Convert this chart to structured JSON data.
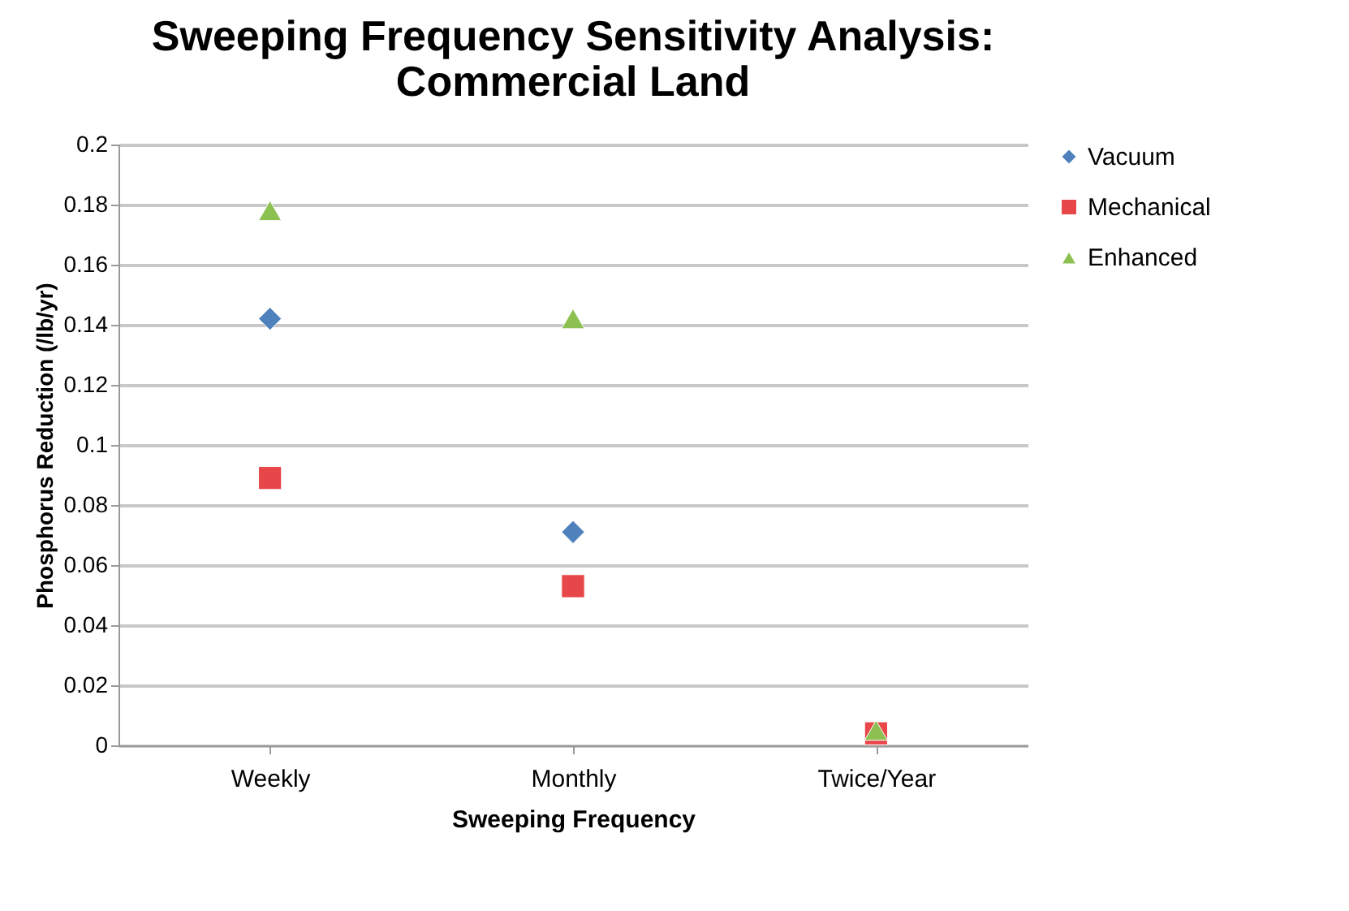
{
  "chart_data": {
    "type": "scatter",
    "title": "Sweeping Frequency Sensitivity Analysis: Commercial Land",
    "xlabel": "Sweeping Frequency",
    "ylabel": "Phosphorus Reduction (/lb/yr)",
    "categories": [
      "Weekly",
      "Monthly",
      "Twice/Year"
    ],
    "series": [
      {
        "name": "Vacuum",
        "color": "#4f81bd",
        "marker": "diamond",
        "values": [
          0.142,
          0.071,
          null
        ]
      },
      {
        "name": "Mechanical",
        "color": "#e8474a",
        "marker": "square",
        "values": [
          0.089,
          0.053,
          0.004
        ]
      },
      {
        "name": "Enhanced",
        "color": "#8cc152",
        "marker": "triangle",
        "values": [
          0.178,
          0.142,
          0.005
        ]
      }
    ],
    "ylim": [
      0,
      0.2
    ],
    "yticks": [
      0,
      0.02,
      0.04,
      0.06,
      0.08,
      0.1,
      0.12,
      0.14,
      0.16,
      0.18,
      0.2
    ],
    "grid": "y",
    "legend": "right"
  }
}
